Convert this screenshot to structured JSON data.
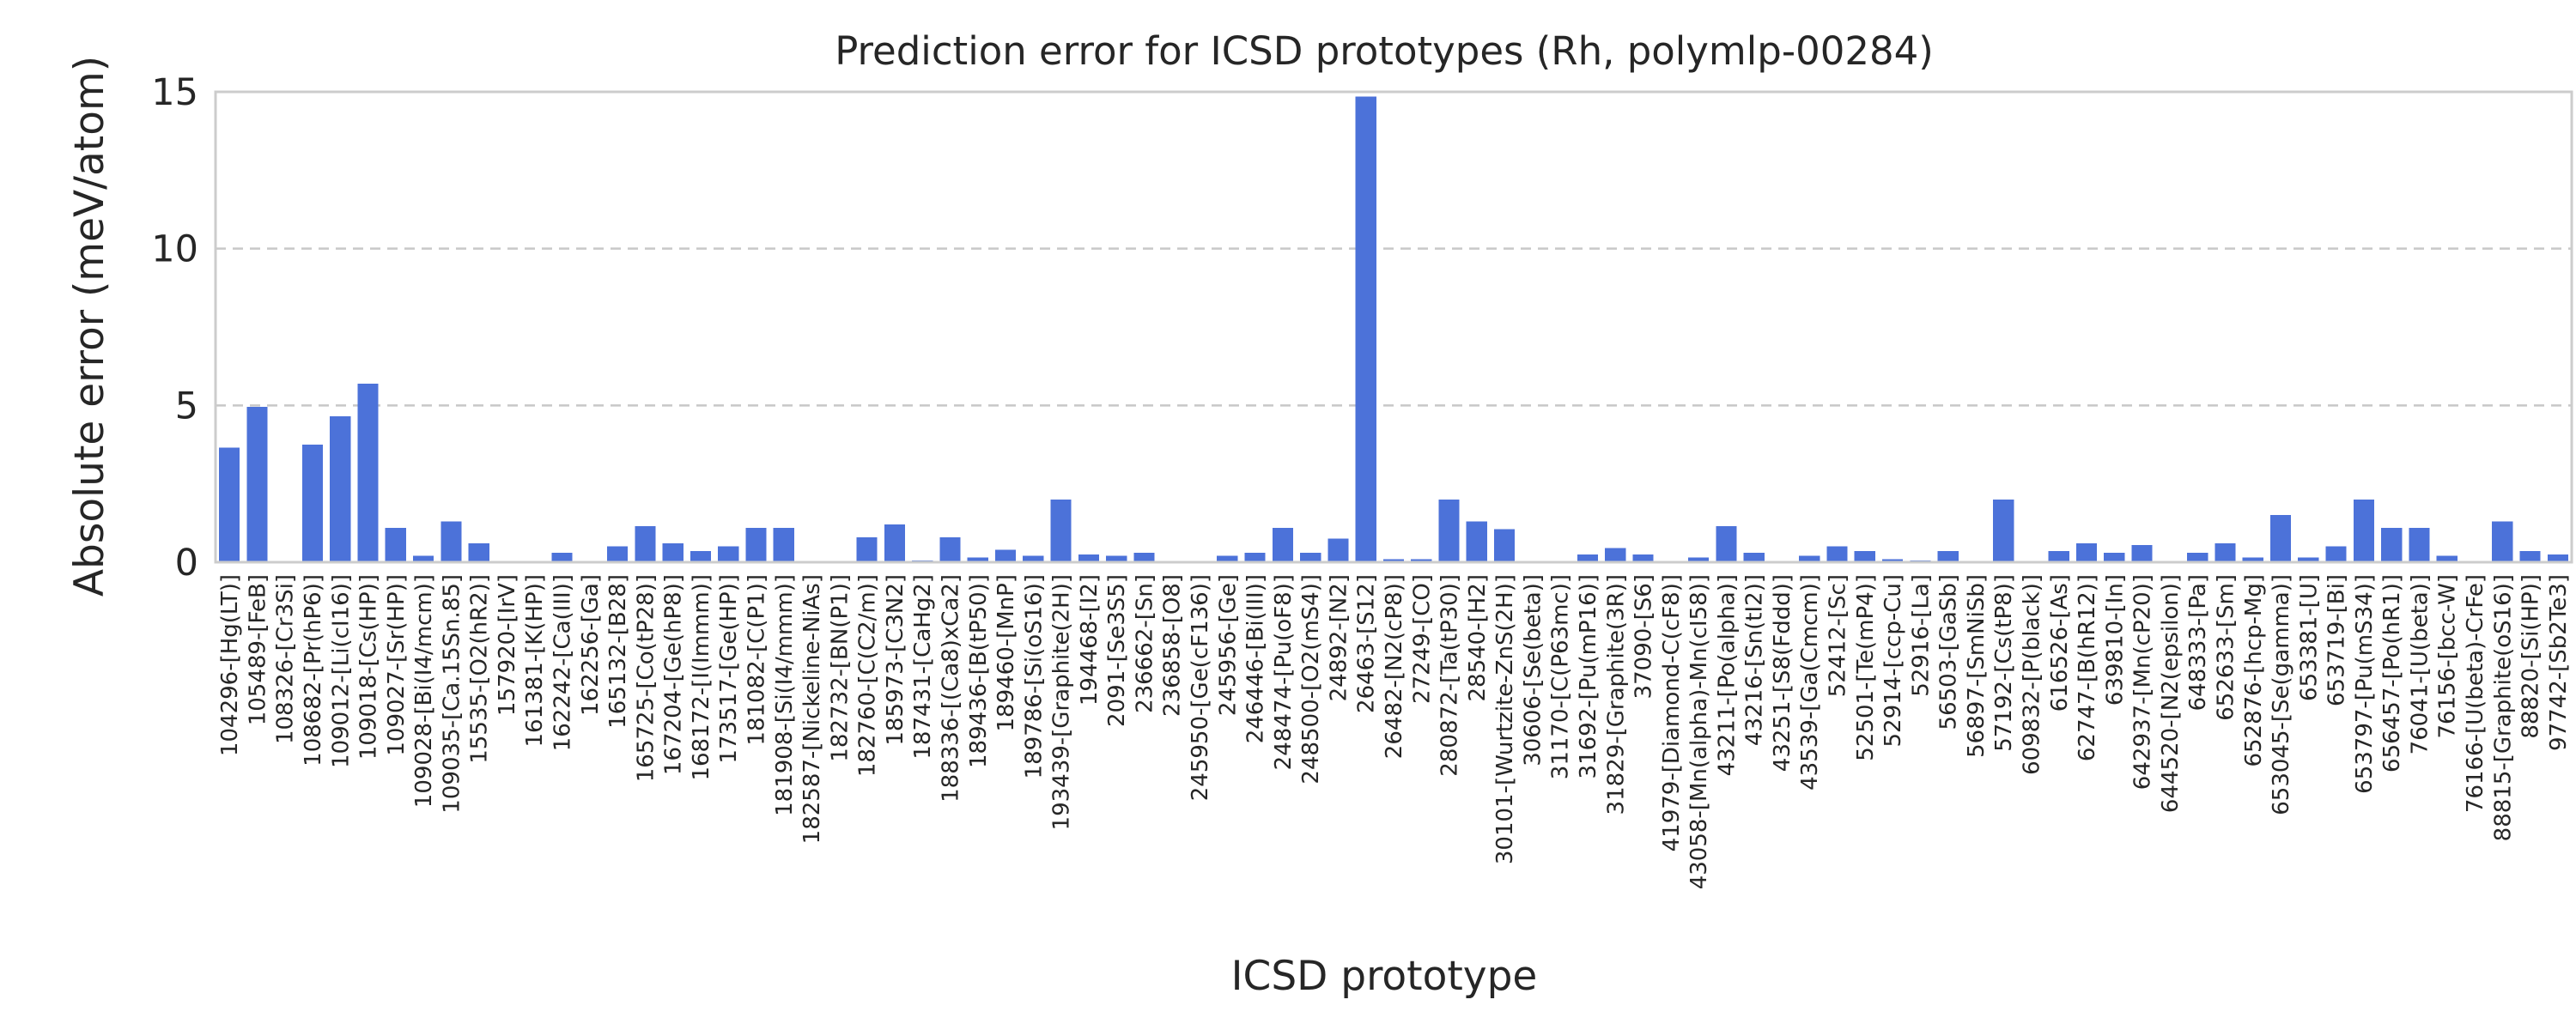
{
  "chart_data": {
    "type": "bar",
    "title": "Prediction error for ICSD prototypes (Rh, polymlp-00284)",
    "xlabel": "ICSD prototype",
    "ylabel": "Absolute error (meV/atom)",
    "ylim": [
      0,
      15
    ],
    "yticks": [
      0,
      5,
      10,
      15
    ],
    "grid": true,
    "bar_color": "#4c72d9",
    "categories": [
      "104296-[Hg(LT)]",
      "105489-[FeB]",
      "108326-[Cr3Si]",
      "108682-[Pr(hP6)]",
      "109012-[Li(cI16)]",
      "109018-[Cs(HP)]",
      "109027-[Sr(HP)]",
      "109028-[Bi(I4/mcm)]",
      "109035-[Ca.15Sn.85]",
      "15535-[O2(hR2)]",
      "157920-[IrV]",
      "161381-[K(HP)]",
      "162242-[Ca(III)]",
      "162256-[Ga]",
      "165132-[B28]",
      "165725-[Co(tP28)]",
      "167204-[Ge(hP8)]",
      "168172-[I(Immm)]",
      "173517-[Ge(HP)]",
      "181082-[C(P1)]",
      "181908-[Si(I4/mmm)]",
      "182587-[Nickeline-NiAs]",
      "182732-[BN(P1)]",
      "182760-[C(C2/m)]",
      "185973-[C3N2]",
      "187431-[CaHg2]",
      "188336-[(Ca8)xCa2]",
      "189436-[B(tP50)]",
      "189460-[MnP]",
      "189786-[Si(oS16)]",
      "193439-[Graphite(2H)]",
      "194468-[I2]",
      "2091-[Se3S5]",
      "236662-[Sn]",
      "236858-[O8]",
      "245950-[Ge(cF136)]",
      "245956-[Ge]",
      "246446-[Bi(III)]",
      "248474-[Pu(oF8)]",
      "248500-[O2(mS4)]",
      "24892-[N2]",
      "26463-[S12]",
      "26482-[N2(cP8)]",
      "27249-[CO]",
      "280872-[Ta(tP30)]",
      "28540-[H2]",
      "30101-[Wurtzite-ZnS(2H)]",
      "30606-[Se(beta)]",
      "31170-[C(P63mc)]",
      "31692-[Pu(mP16)]",
      "31829-[Graphite(3R)]",
      "37090-[S6]",
      "41979-[Diamond-C(cF8)]",
      "43058-[Mn(alpha)-Mn(cI58)]",
      "43211-[Po(alpha)]",
      "43216-[Sn(tI2)]",
      "43251-[S8(Fddd)]",
      "43539-[Ga(Cmcm)]",
      "52412-[Sc]",
      "52501-[Te(mP4)]",
      "52914-[ccp-Cu]",
      "52916-[La]",
      "56503-[GaSb]",
      "56897-[SmNiSb]",
      "57192-[Cs(tP8)]",
      "609832-[P(black)]",
      "616526-[As]",
      "62747-[B(hR12)]",
      "639810-[In]",
      "642937-[Mn(cP20)]",
      "644520-[N2(epsilon)]",
      "648333-[Pa]",
      "652633-[Sm]",
      "652876-[hcp-Mg]",
      "653045-[Se(gamma)]",
      "653381-[U]",
      "653719-[Bi]",
      "653797-[Pu(mS34)]",
      "656457-[Po(hR1)]",
      "76041-[U(beta)]",
      "76156-[bcc-W]",
      "76166-[U(beta)-CrFe]",
      "88815-[Graphite(oS16)]",
      "88820-[Si(HP)]",
      "97742-[Sb2Te3]"
    ],
    "values": [
      3.65,
      4.95,
      0.0,
      3.75,
      4.65,
      5.7,
      1.1,
      0.2,
      1.3,
      0.6,
      0.0,
      0.0,
      0.3,
      0.02,
      0.5,
      1.15,
      0.6,
      0.35,
      0.5,
      1.1,
      1.1,
      0.0,
      0.0,
      0.8,
      1.2,
      0.05,
      0.8,
      0.15,
      0.4,
      0.2,
      2.0,
      0.25,
      0.2,
      0.3,
      0.0,
      0.0,
      0.2,
      0.3,
      1.1,
      0.3,
      0.75,
      14.85,
      0.1,
      0.1,
      2.0,
      1.3,
      1.05,
      0.0,
      0.0,
      0.25,
      0.45,
      0.25,
      0.0,
      0.15,
      1.15,
      0.3,
      0.02,
      0.2,
      0.5,
      0.35,
      0.1,
      0.05,
      0.35,
      0.0,
      2.0,
      0.0,
      0.35,
      0.6,
      0.3,
      0.55,
      0.0,
      0.3,
      0.6,
      0.15,
      1.5,
      0.15,
      0.5,
      2.0,
      1.1,
      1.1,
      0.2,
      0.0,
      1.3,
      0.35,
      0.25
    ]
  }
}
